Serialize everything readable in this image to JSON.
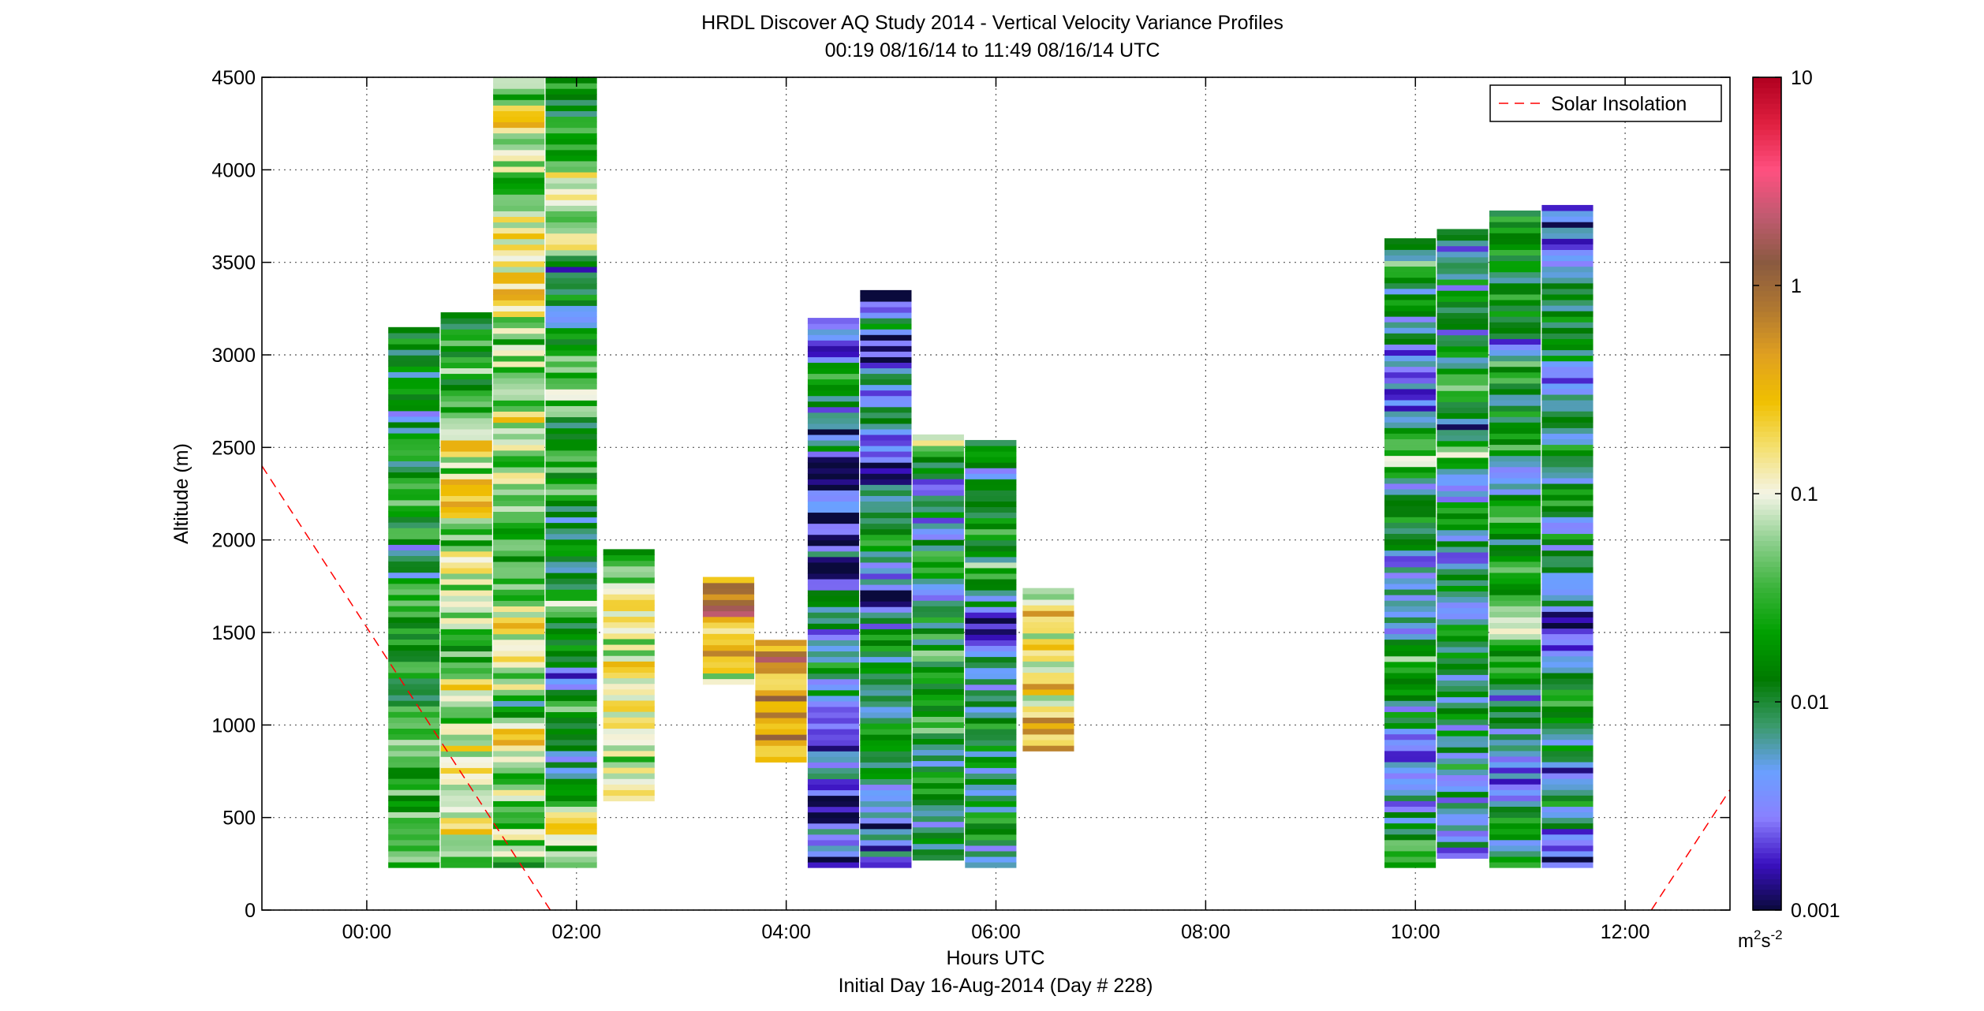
{
  "chart_data": {
    "type": "heatmap",
    "title": "HRDL Discover AQ Study 2014 - Vertical Velocity Variance Profiles",
    "subtitle": "00:19 08/16/14 to 11:49 08/16/14  UTC",
    "xlabel": "Hours UTC",
    "xlabel2": "Initial Day 16-Aug-2014 (Day # 228)",
    "ylabel": "Altitude (m)",
    "xlim": [
      -1.0,
      13.0
    ],
    "ylim": [
      0,
      4500
    ],
    "x_ticks": [
      0,
      2,
      4,
      6,
      8,
      10,
      12
    ],
    "x_tick_labels": [
      "00:00",
      "02:00",
      "04:00",
      "06:00",
      "08:00",
      "10:00",
      "12:00"
    ],
    "y_ticks": [
      0,
      500,
      1000,
      1500,
      2000,
      2500,
      3000,
      3500,
      4000,
      4500
    ],
    "y_tick_labels": [
      "0",
      "500",
      "1000",
      "1500",
      "2000",
      "2500",
      "3000",
      "3500",
      "4000",
      "4500"
    ],
    "grid": true,
    "legend": {
      "position": "top-right",
      "entries": [
        {
          "label": "Solar Insolation",
          "style": "dashed",
          "color": "#ff0000"
        }
      ]
    },
    "solar_insolation": {
      "color": "#ff0000",
      "segments": [
        {
          "x": [
            -1.0,
            1.75
          ],
          "y": [
            2400,
            0
          ]
        },
        {
          "x": [
            12.25,
            13.0
          ],
          "y": [
            0,
            650
          ]
        }
      ]
    },
    "colorbar": {
      "scale": "log",
      "range": [
        0.001,
        10
      ],
      "ticks": [
        0.001,
        0.01,
        0.1,
        1,
        10
      ],
      "tick_labels": [
        "0.001",
        "0.01",
        "0.1",
        "1",
        "10"
      ],
      "unit_label": "m2s-2",
      "colors": [
        "#0a0a3c",
        "#3a10c0",
        "#8a80ff",
        "#6aa0ff",
        "#3a9a6a",
        "#007a00",
        "#00a000",
        "#3cb43c",
        "#90d090",
        "#f4f4e6",
        "#f4e070",
        "#f0c000",
        "#e0a020",
        "#b07830",
        "#8a5a40",
        "#c05a70",
        "#ff5080",
        "#e02040",
        "#b00020"
      ]
    },
    "profile_columns": [
      {
        "time": 0.45,
        "z_bottom": 230,
        "z_top": 3150,
        "mean_log_variance": -1.7
      },
      {
        "time": 0.95,
        "z_bottom": 230,
        "z_top": 3230,
        "mean_log_variance": -1.2
      },
      {
        "time": 1.45,
        "z_bottom": 230,
        "z_top": 4500,
        "mean_log_variance": -1.3
      },
      {
        "time": 1.95,
        "z_bottom": 230,
        "z_top": 4500,
        "mean_log_variance": -1.6
      },
      {
        "time": 2.5,
        "z_bottom": 590,
        "z_top": 1950,
        "mean_log_variance": -1.0
      },
      {
        "time": 3.45,
        "z_bottom": 1220,
        "z_top": 1800,
        "mean_log_variance": -0.5
      },
      {
        "time": 3.95,
        "z_bottom": 800,
        "z_top": 1460,
        "mean_log_variance": -0.6
      },
      {
        "time": 4.45,
        "z_bottom": 230,
        "z_top": 3200,
        "mean_log_variance": -2.4
      },
      {
        "time": 4.95,
        "z_bottom": 230,
        "z_top": 3350,
        "mean_log_variance": -2.4
      },
      {
        "time": 5.45,
        "z_bottom": 270,
        "z_top": 2570,
        "mean_log_variance": -1.9
      },
      {
        "time": 5.95,
        "z_bottom": 230,
        "z_top": 2540,
        "mean_log_variance": -2.0
      },
      {
        "time": 6.5,
        "z_bottom": 860,
        "z_top": 1740,
        "mean_log_variance": -0.7
      },
      {
        "time": 9.95,
        "z_bottom": 230,
        "z_top": 3630,
        "mean_log_variance": -2.0
      },
      {
        "time": 10.45,
        "z_bottom": 280,
        "z_top": 3680,
        "mean_log_variance": -2.1
      },
      {
        "time": 10.95,
        "z_bottom": 230,
        "z_top": 3780,
        "mean_log_variance": -2.1
      },
      {
        "time": 11.45,
        "z_bottom": 230,
        "z_top": 3810,
        "mean_log_variance": -2.3
      }
    ]
  }
}
